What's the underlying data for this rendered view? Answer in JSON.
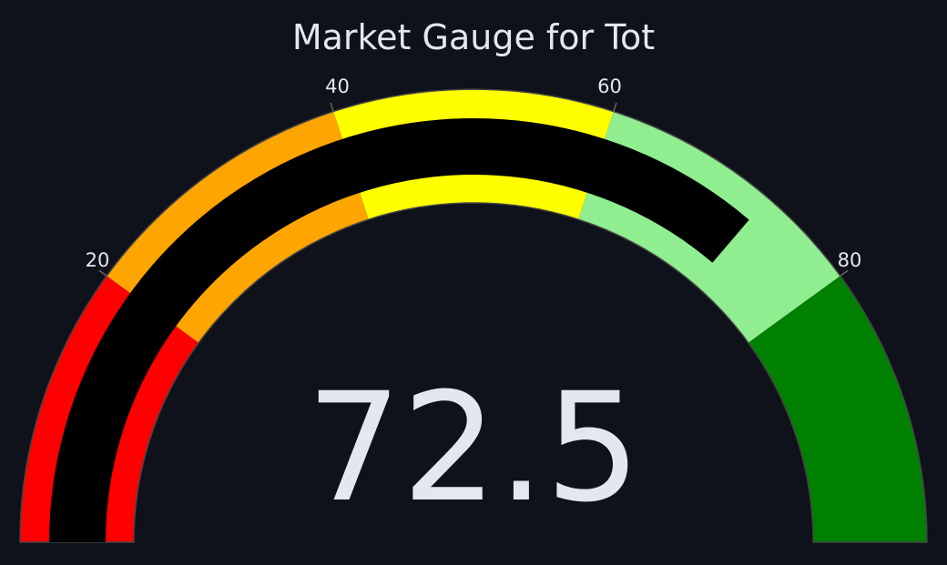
{
  "chart_data": {
    "type": "gauge",
    "title": "Market Gauge for Tot",
    "value": 72.5,
    "value_display": "72.5",
    "range": [
      0,
      100
    ],
    "ticks": [
      {
        "value": 20,
        "label": "20"
      },
      {
        "value": 40,
        "label": "40"
      },
      {
        "value": 60,
        "label": "60"
      },
      {
        "value": 80,
        "label": "80"
      }
    ],
    "steps": [
      {
        "range": [
          0,
          20
        ],
        "color": "#ff0000"
      },
      {
        "range": [
          20,
          40
        ],
        "color": "#ffa500"
      },
      {
        "range": [
          40,
          60
        ],
        "color": "#ffff00"
      },
      {
        "range": [
          60,
          80
        ],
        "color": "#90ee90"
      },
      {
        "range": [
          80,
          100
        ],
        "color": "#008000"
      }
    ],
    "bar_color": "#000000",
    "background_color": "#0f121a",
    "text_color": "#e5e7ef"
  }
}
